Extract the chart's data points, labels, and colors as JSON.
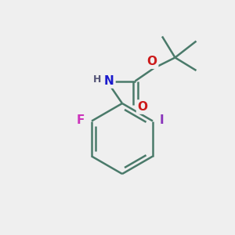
{
  "bg_color": "#efefef",
  "bond_color": "#4a7a6a",
  "bond_width": 1.8,
  "atom_colors": {
    "N": "#1a1acc",
    "O": "#cc1a1a",
    "F": "#cc33bb",
    "I": "#8833bb",
    "H": "#555577",
    "C": "#4a7a6a"
  },
  "font_size_atoms": 11,
  "font_size_H": 9,
  "fig_bg": "#efefef"
}
